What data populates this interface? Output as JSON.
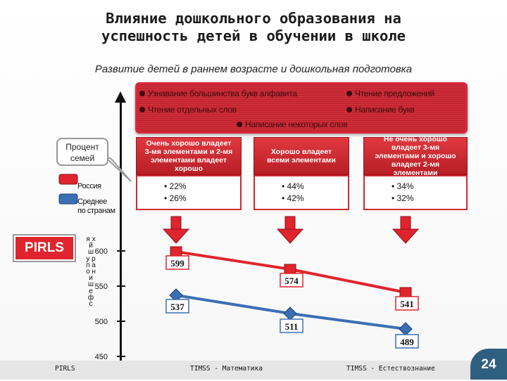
{
  "title_line1": "Влияние дошкольного образования на",
  "title_line2": "успешность детей в обучении в школе",
  "subtitle": "Развитие детей в раннем возрасте и дошкольная подготовка",
  "legend": {
    "items": [
      "Узнавание большинства букв алфавита",
      "Чтение предложений",
      "Чтение отдельных слов",
      "Написание букв",
      "Написание некоторых слов"
    ]
  },
  "callout": {
    "line1": "Процент",
    "line2": "семей"
  },
  "side_legend": {
    "russia": "Россия",
    "avg_line1": "Среднее",
    "avg_line2": "по странам"
  },
  "categories": [
    {
      "label": "Очень хорошо владеет 3-мя элементами и 2-мя элементами владеет хорошо",
      "russia": "• 22%",
      "average": "• 26%"
    },
    {
      "label": "Хорошо владеет всеми элементами",
      "russia": "• 44%",
      "average": "• 42%"
    },
    {
      "label": "Не очень хорошо владеет 3-мя элементами и хорошо владеет 2-мя элементами",
      "russia": "• 34%",
      "average": "• 32%"
    }
  ],
  "pirls_badge": "PIRLS",
  "y_axis_label": "я х й ш у р п а о н и ш е ф с",
  "chart_data": {
    "type": "line",
    "ylim": [
      450,
      600
    ],
    "yticks": [
      450,
      500,
      550,
      600
    ],
    "ytick_labels": [
      "450",
      "500",
      "550",
      "600"
    ],
    "categories": [
      "1",
      "2",
      "3"
    ],
    "series": [
      {
        "name": "Россия",
        "color": "#e0242d",
        "values": [
          599,
          574,
          541
        ]
      },
      {
        "name": "Среднее по странам",
        "color": "#3a6fb4",
        "values": [
          537,
          511,
          489
        ]
      }
    ]
  },
  "footer": {
    "pirls": "PIRLS",
    "timss_math": "TIMSS - Математика",
    "timss_sci": "TIMSS - Естествознание"
  },
  "page_number": "24"
}
